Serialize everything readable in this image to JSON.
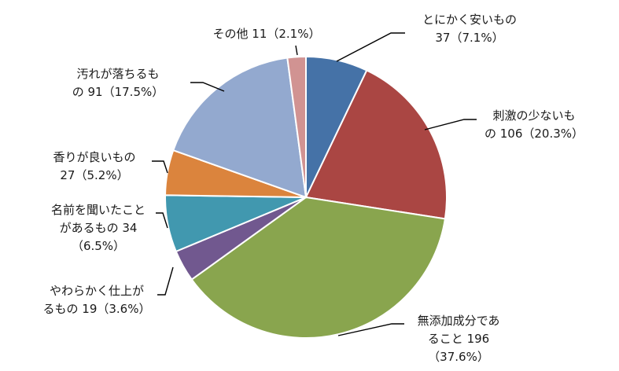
{
  "chart_data": {
    "type": "pie",
    "title": "",
    "slices": [
      {
        "label": "とにかく安いもの",
        "value": 37,
        "percent": 7.1,
        "color": "#4572A7",
        "label_lines": [
          "とにかく安いもの",
          "37（7.1%）"
        ]
      },
      {
        "label": "刺激の少ないもの",
        "value": 106,
        "percent": 20.3,
        "color": "#AA4643",
        "label_lines": [
          "刺激の少ないも",
          "の 106（20.3%）"
        ]
      },
      {
        "label": "無添加成分であること",
        "value": 196,
        "percent": 37.6,
        "color": "#89A54E",
        "label_lines": [
          "無添加成分であ",
          "ること 196",
          "（37.6%）"
        ]
      },
      {
        "label": "やわらかく仕上がるもの",
        "value": 19,
        "percent": 3.6,
        "color": "#71588F",
        "label_lines": [
          "やわらかく仕上が",
          "るもの 19（3.6%）"
        ]
      },
      {
        "label": "名前を聞いたことがあるもの",
        "value": 34,
        "percent": 6.5,
        "color": "#4198AF",
        "label_lines": [
          "名前を聞いたこと",
          "があるもの 34",
          "（6.5%）"
        ]
      },
      {
        "label": "香りが良いもの",
        "value": 27,
        "percent": 5.2,
        "color": "#DB843D",
        "label_lines": [
          "香りが良いもの",
          "27（5.2%）"
        ]
      },
      {
        "label": "汚れが落ちるもの",
        "value": 91,
        "percent": 17.5,
        "color": "#93A9CF",
        "label_lines": [
          "汚れが落ちるも",
          "の 91（17.5%）"
        ]
      },
      {
        "label": "その他",
        "value": 11,
        "percent": 2.1,
        "color": "#D19392",
        "label_lines": [
          "その他 11（2.1%）"
        ]
      }
    ],
    "legend": false
  }
}
